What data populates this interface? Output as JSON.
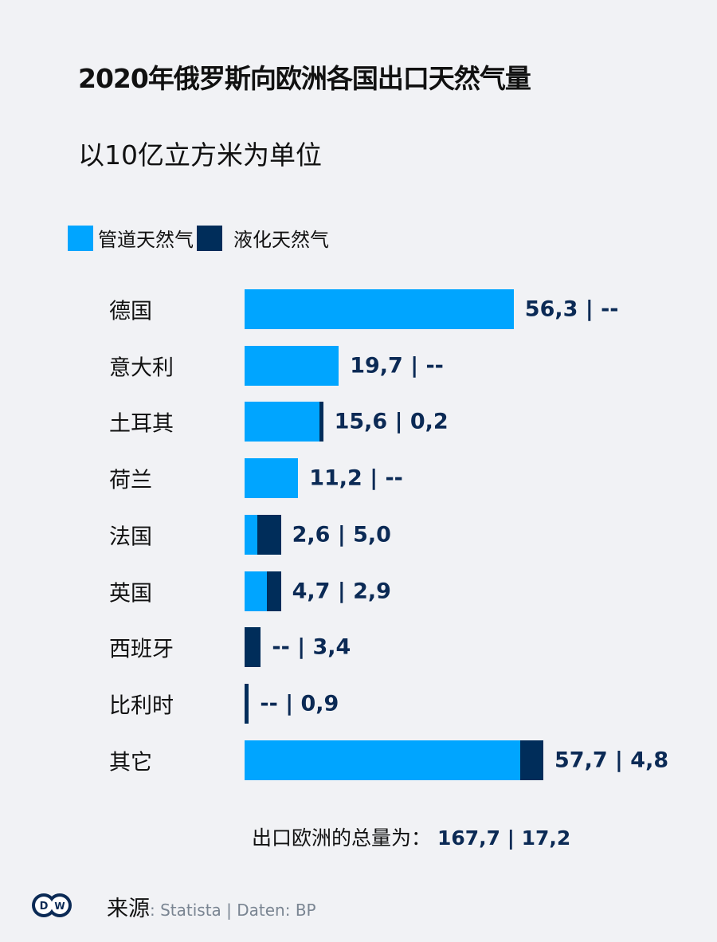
{
  "chart_data": {
    "type": "bar",
    "orientation": "horizontal",
    "stacked": true,
    "title": "2020年俄罗斯向欧洲各国出口天然气量",
    "subtitle": "以10亿立方米为单位",
    "categories": [
      "德国",
      "意大利",
      "土耳其",
      "荷兰",
      "法国",
      "英国",
      "西班牙",
      "比利时",
      "其它"
    ],
    "series": [
      {
        "name": "管道天然气",
        "color": "#00a5ff",
        "values": [
          56.3,
          19.7,
          15.6,
          11.2,
          2.6,
          4.7,
          0,
          0,
          57.7
        ]
      },
      {
        "name": "液化天然气",
        "color": "#002d5a",
        "values": [
          0,
          0,
          0.2,
          0,
          5.0,
          2.9,
          3.4,
          0.9,
          4.8
        ]
      }
    ],
    "data_labels": [
      "56,3 | --",
      "19,7 | --",
      "15,6 | 0,2",
      "11,2 | --",
      "2,6 | 5,0",
      "4,7 | 2,9",
      "-- | 3,4",
      "-- | 0,9",
      "57,7 | 4,8"
    ],
    "legend_position": "top-left",
    "grid": false
  },
  "total": {
    "label": "出口欧洲的总量为：",
    "value": "167,7 | 17,2"
  },
  "footer": {
    "source_label": "来源",
    "source_text": ": Statista | Daten: BP",
    "logo": "DW"
  }
}
